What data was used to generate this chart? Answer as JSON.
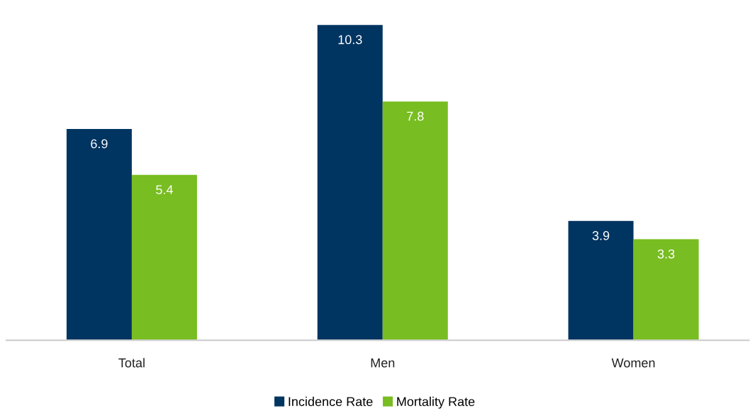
{
  "chart_data": {
    "type": "bar",
    "categories": [
      "Total",
      "Men",
      "Women"
    ],
    "series": [
      {
        "name": "Incidence Rate",
        "color": "#003461",
        "values": [
          6.9,
          10.3,
          3.9
        ]
      },
      {
        "name": "Mortality Rate",
        "color": "#78bd21",
        "values": [
          5.4,
          7.8,
          3.3
        ]
      }
    ],
    "data_labels": true,
    "legend": "bottom",
    "grid": false
  }
}
